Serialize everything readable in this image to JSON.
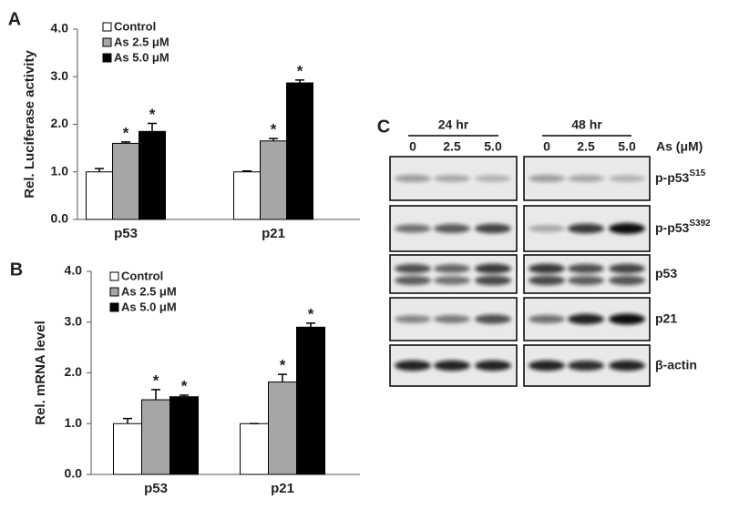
{
  "chart_data": [
    {
      "type": "bar",
      "panel_label": "A",
      "y_label": "Rel. Luciferase activity",
      "categories": [
        "p53",
        "p21"
      ],
      "ylim": [
        0,
        4
      ],
      "yticks": [
        {
          "value": 0,
          "label": "0.0"
        },
        {
          "value": 1,
          "label": "1.0"
        },
        {
          "value": 2,
          "label": "2.0"
        },
        {
          "value": 3,
          "label": "3.0"
        },
        {
          "value": 4,
          "label": "4.0"
        }
      ],
      "series": [
        {
          "name": "Control",
          "color": "#ffffff",
          "values": [
            1.0,
            1.0
          ],
          "errors": [
            0.07,
            0.02
          ],
          "significance": [
            null,
            null
          ]
        },
        {
          "name": "As 2.5 μM",
          "color": "#a6a6a6",
          "values": [
            1.6,
            1.65
          ],
          "errors": [
            0.03,
            0.05
          ],
          "significance": [
            "*",
            "*"
          ]
        },
        {
          "name": "As 5.0 μM",
          "color": "#000000",
          "values": [
            1.85,
            2.87
          ],
          "errors": [
            0.17,
            0.06
          ],
          "significance": [
            "*",
            "*"
          ]
        }
      ]
    },
    {
      "type": "bar",
      "panel_label": "B",
      "y_label": "Rel. mRNA level",
      "categories": [
        "p53",
        "p21"
      ],
      "ylim": [
        0,
        4
      ],
      "yticks": [
        {
          "value": 0,
          "label": "0.0"
        },
        {
          "value": 1,
          "label": "1.0"
        },
        {
          "value": 2,
          "label": "2.0"
        },
        {
          "value": 3,
          "label": "3.0"
        },
        {
          "value": 4,
          "label": "4.0"
        }
      ],
      "series": [
        {
          "name": "Control",
          "color": "#ffffff",
          "values": [
            1.0,
            1.0
          ],
          "errors": [
            0.1,
            0.0
          ],
          "significance": [
            null,
            null
          ]
        },
        {
          "name": "As 2.5 μM",
          "color": "#a6a6a6",
          "values": [
            1.47,
            1.82
          ],
          "errors": [
            0.2,
            0.15
          ],
          "significance": [
            "*",
            "*"
          ]
        },
        {
          "name": "As 5.0 μM",
          "color": "#000000",
          "values": [
            1.53,
            2.9
          ],
          "errors": [
            0.03,
            0.08
          ],
          "significance": [
            "*",
            "*"
          ]
        }
      ]
    }
  ],
  "blot": {
    "panel_label": "C",
    "time_points": [
      "24 hr",
      "48 hr"
    ],
    "lanes": [
      "0",
      "2.5",
      "5.0"
    ],
    "treatment_label": "As (μM)",
    "rows": [
      {
        "label": "p-p53",
        "superscript": "S15"
      },
      {
        "label": "p-p53",
        "superscript": "S392"
      },
      {
        "label": "p53",
        "superscript": null
      },
      {
        "label": "p21",
        "superscript": null
      },
      {
        "label": "β-actin",
        "superscript": null
      }
    ]
  }
}
